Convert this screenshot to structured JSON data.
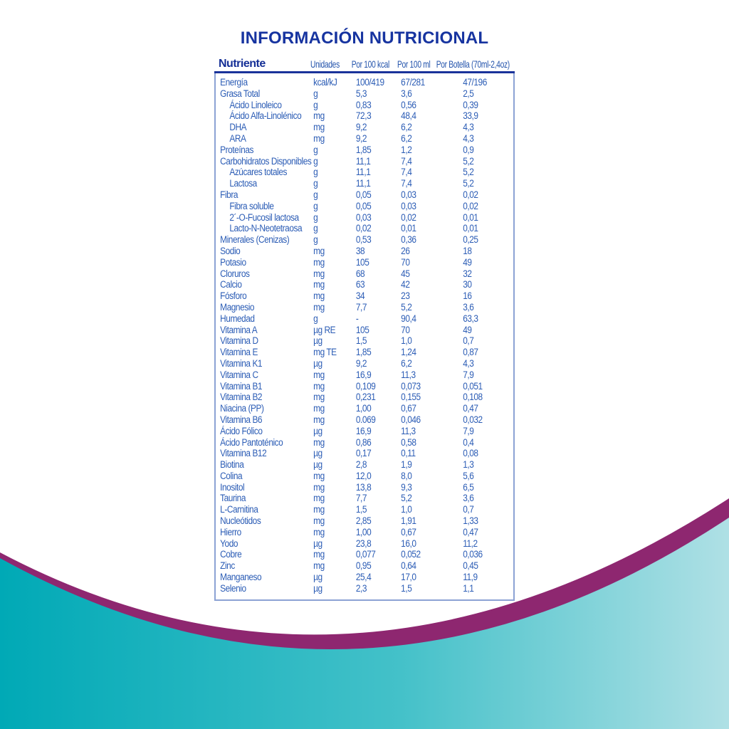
{
  "title": "INFORMACIÓN NUTRICIONAL",
  "colors": {
    "title_blue": "#1734A0",
    "header_navy": "#152F96",
    "body_blue": "#2B5CB5",
    "table_border": "#8CA2D4",
    "header_rule": "#1A339A",
    "wave_purple": "#8E2770",
    "wave_teal_left": "#00A9B6",
    "wave_teal_right": "#AFE0E5"
  },
  "table": {
    "headers": {
      "nutrient": "Nutriente",
      "units": "Unidades",
      "per_100_kcal": "Por 100 kcal",
      "per_100_ml": "Por 100 ml",
      "per_bottle": "Por Botella (70ml-2,4oz)"
    },
    "rows": [
      {
        "name": "Energía",
        "indent": false,
        "unit": "kcal/kJ",
        "kcal": "100/419",
        "ml": "67/281",
        "bottle": "47/196"
      },
      {
        "name": "Grasa Total",
        "indent": false,
        "unit": "g",
        "kcal": "5,3",
        "ml": "3,6",
        "bottle": "2,5"
      },
      {
        "name": "Ácido Linoleico",
        "indent": true,
        "unit": "g",
        "kcal": "0,83",
        "ml": "0,56",
        "bottle": "0,39"
      },
      {
        "name": "Ácido Alfa-Linolénico",
        "indent": true,
        "unit": "mg",
        "kcal": "72,3",
        "ml": "48,4",
        "bottle": "33,9"
      },
      {
        "name": "DHA",
        "indent": true,
        "unit": "mg",
        "kcal": "9,2",
        "ml": "6,2",
        "bottle": "4,3"
      },
      {
        "name": "ARA",
        "indent": true,
        "unit": "mg",
        "kcal": "9,2",
        "ml": "6,2",
        "bottle": "4,3"
      },
      {
        "name": "Proteínas",
        "indent": false,
        "unit": "g",
        "kcal": "1,85",
        "ml": "1,2",
        "bottle": "0,9"
      },
      {
        "name": "Carbohidratos Disponibles",
        "indent": false,
        "unit": "g",
        "kcal": "11,1",
        "ml": "7,4",
        "bottle": "5,2"
      },
      {
        "name": "Azúcares totales",
        "indent": true,
        "unit": "g",
        "kcal": "11,1",
        "ml": "7,4",
        "bottle": "5,2"
      },
      {
        "name": "Lactosa",
        "indent": true,
        "unit": "g",
        "kcal": "11,1",
        "ml": "7,4",
        "bottle": "5,2"
      },
      {
        "name": "Fibra",
        "indent": false,
        "unit": "g",
        "kcal": "0,05",
        "ml": "0,03",
        "bottle": "0,02"
      },
      {
        "name": "Fibra soluble",
        "indent": true,
        "unit": "g",
        "kcal": "0,05",
        "ml": "0,03",
        "bottle": "0,02"
      },
      {
        "name": "2´-O-Fucosil lactosa",
        "indent": true,
        "unit": "g",
        "kcal": "0,03",
        "ml": "0,02",
        "bottle": "0,01"
      },
      {
        "name": "Lacto-N-Neotetraosa",
        "indent": true,
        "unit": "g",
        "kcal": "0,02",
        "ml": "0,01",
        "bottle": "0,01"
      },
      {
        "name": "Minerales (Cenizas)",
        "indent": false,
        "unit": "g",
        "kcal": "0,53",
        "ml": "0,36",
        "bottle": "0,25"
      },
      {
        "name": "Sodio",
        "indent": false,
        "unit": "mg",
        "kcal": "38",
        "ml": "26",
        "bottle": "18"
      },
      {
        "name": "Potasio",
        "indent": false,
        "unit": "mg",
        "kcal": "105",
        "ml": "70",
        "bottle": "49"
      },
      {
        "name": "Cloruros",
        "indent": false,
        "unit": "mg",
        "kcal": "68",
        "ml": "45",
        "bottle": "32"
      },
      {
        "name": "Calcio",
        "indent": false,
        "unit": "mg",
        "kcal": "63",
        "ml": "42",
        "bottle": "30"
      },
      {
        "name": "Fósforo",
        "indent": false,
        "unit": "mg",
        "kcal": "34",
        "ml": "23",
        "bottle": "16"
      },
      {
        "name": "Magnesio",
        "indent": false,
        "unit": "mg",
        "kcal": "7,7",
        "ml": "5,2",
        "bottle": "3,6"
      },
      {
        "name": "Humedad",
        "indent": false,
        "unit": "g",
        "kcal": "-",
        "ml": "90,4",
        "bottle": "63,3"
      },
      {
        "name": "Vitamina A",
        "indent": false,
        "unit": "µg RE",
        "kcal": "105",
        "ml": "70",
        "bottle": "49"
      },
      {
        "name": "Vitamina D",
        "indent": false,
        "unit": "µg",
        "kcal": "1,5",
        "ml": "1,0",
        "bottle": "0,7"
      },
      {
        "name": "Vitamina E",
        "indent": false,
        "unit": "mg TE",
        "kcal": "1,85",
        "ml": "1,24",
        "bottle": "0,87"
      },
      {
        "name": "Vitamina K1",
        "indent": false,
        "unit": "µg",
        "kcal": "9,2",
        "ml": "6,2",
        "bottle": "4,3"
      },
      {
        "name": "Vitamina C",
        "indent": false,
        "unit": "mg",
        "kcal": "16,9",
        "ml": "11,3",
        "bottle": "7,9"
      },
      {
        "name": "Vitamina B1",
        "indent": false,
        "unit": "mg",
        "kcal": "0,109",
        "ml": "0,073",
        "bottle": "0,051"
      },
      {
        "name": "Vitamina B2",
        "indent": false,
        "unit": "mg",
        "kcal": "0,231",
        "ml": "0,155",
        "bottle": "0,108"
      },
      {
        "name": "Niacina (PP)",
        "indent": false,
        "unit": "mg",
        "kcal": "1,00",
        "ml": "0,67",
        "bottle": "0,47"
      },
      {
        "name": "Vitamina B6",
        "indent": false,
        "unit": "mg",
        "kcal": "0.069",
        "ml": "0,046",
        "bottle": "0,032"
      },
      {
        "name": "Ácido Fólico",
        "indent": false,
        "unit": "µg",
        "kcal": "16,9",
        "ml": "11,3",
        "bottle": "7,9"
      },
      {
        "name": "Ácido Pantoténico",
        "indent": false,
        "unit": "mg",
        "kcal": "0,86",
        "ml": "0,58",
        "bottle": "0,4"
      },
      {
        "name": "Vitamina B12",
        "indent": false,
        "unit": "µg",
        "kcal": "0,17",
        "ml": "0,11",
        "bottle": "0,08"
      },
      {
        "name": "Biotina",
        "indent": false,
        "unit": "µg",
        "kcal": "2,8",
        "ml": "1,9",
        "bottle": "1,3"
      },
      {
        "name": "Colina",
        "indent": false,
        "unit": "mg",
        "kcal": "12,0",
        "ml": "8,0",
        "bottle": "5,6"
      },
      {
        "name": "Inositol",
        "indent": false,
        "unit": "mg",
        "kcal": "13,8",
        "ml": "9,3",
        "bottle": "6,5"
      },
      {
        "name": "Taurina",
        "indent": false,
        "unit": "mg",
        "kcal": "7,7",
        "ml": "5,2",
        "bottle": "3,6"
      },
      {
        "name": "L-Carnitina",
        "indent": false,
        "unit": "mg",
        "kcal": "1,5",
        "ml": "1,0",
        "bottle": "0,7"
      },
      {
        "name": "Nucleótidos",
        "indent": false,
        "unit": "mg",
        "kcal": "2,85",
        "ml": "1,91",
        "bottle": "1,33"
      },
      {
        "name": "Hierro",
        "indent": false,
        "unit": "mg",
        "kcal": "1,00",
        "ml": "0,67",
        "bottle": "0,47"
      },
      {
        "name": "Yodo",
        "indent": false,
        "unit": "µg",
        "kcal": "23,8",
        "ml": "16,0",
        "bottle": "11,2"
      },
      {
        "name": "Cobre",
        "indent": false,
        "unit": "mg",
        "kcal": "0,077",
        "ml": "0,052",
        "bottle": "0,036"
      },
      {
        "name": "Zinc",
        "indent": false,
        "unit": "mg",
        "kcal": "0,95",
        "ml": "0,64",
        "bottle": "0,45"
      },
      {
        "name": "Manganeso",
        "indent": false,
        "unit": "µg",
        "kcal": "25,4",
        "ml": "17,0",
        "bottle": "11,9"
      },
      {
        "name": "Selenio",
        "indent": false,
        "unit": "µg",
        "kcal": "2,3",
        "ml": "1,5",
        "bottle": "1,1"
      }
    ]
  }
}
